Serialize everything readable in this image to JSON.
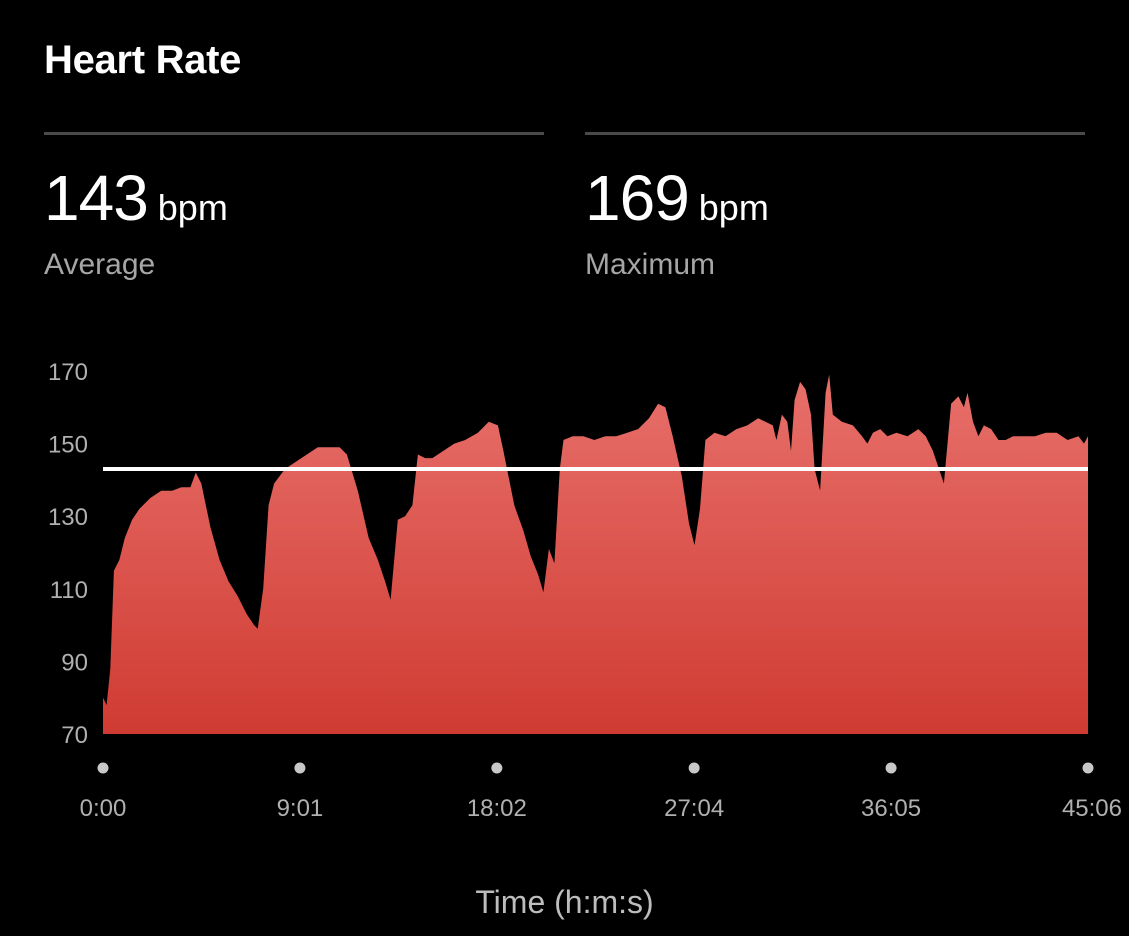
{
  "title": "Heart Rate",
  "stats": {
    "average": {
      "value": "143",
      "unit": "bpm",
      "label": "Average"
    },
    "maximum": {
      "value": "169",
      "unit": "bpm",
      "label": "Maximum"
    }
  },
  "colors": {
    "background": "#000000",
    "area_top": "#e8706b",
    "area_bottom": "#cf3b32",
    "average_line": "#ffffff",
    "divider": "#4a4a4a",
    "muted_text": "#a6a6a6"
  },
  "chart_data": {
    "type": "area",
    "title": "",
    "xlabel": "Time (h:m:s)",
    "ylabel": "",
    "ylim": [
      70,
      170
    ],
    "xlim_seconds": [
      0,
      2706
    ],
    "y_ticks": [
      70,
      90,
      110,
      130,
      150,
      170
    ],
    "x_ticks": [
      {
        "seconds": 0,
        "label": "0:00"
      },
      {
        "seconds": 541,
        "label": "9:01"
      },
      {
        "seconds": 1082,
        "label": "18:02"
      },
      {
        "seconds": 1624,
        "label": "27:04"
      },
      {
        "seconds": 2165,
        "label": "36:05"
      },
      {
        "seconds": 2706,
        "label": "45:06"
      }
    ],
    "average_line": 143,
    "grid": false,
    "legend": "none",
    "series": [
      {
        "values": [
          [
            0,
            80
          ],
          [
            10,
            78
          ],
          [
            20,
            88
          ],
          [
            30,
            115
          ],
          [
            45,
            118
          ],
          [
            60,
            124
          ],
          [
            80,
            129
          ],
          [
            100,
            132
          ],
          [
            130,
            135
          ],
          [
            160,
            137
          ],
          [
            190,
            137
          ],
          [
            215,
            138
          ],
          [
            240,
            138
          ],
          [
            255,
            142
          ],
          [
            270,
            139
          ],
          [
            295,
            127
          ],
          [
            320,
            118
          ],
          [
            345,
            112
          ],
          [
            370,
            108
          ],
          [
            395,
            103
          ],
          [
            415,
            100
          ],
          [
            425,
            99
          ],
          [
            440,
            110
          ],
          [
            455,
            133
          ],
          [
            470,
            139
          ],
          [
            500,
            143
          ],
          [
            530,
            145
          ],
          [
            560,
            147
          ],
          [
            590,
            149
          ],
          [
            620,
            149
          ],
          [
            650,
            149
          ],
          [
            670,
            147
          ],
          [
            700,
            137
          ],
          [
            730,
            124
          ],
          [
            755,
            118
          ],
          [
            775,
            112
          ],
          [
            790,
            107
          ],
          [
            810,
            129
          ],
          [
            830,
            130
          ],
          [
            850,
            133
          ],
          [
            865,
            147
          ],
          [
            885,
            146
          ],
          [
            905,
            146
          ],
          [
            935,
            148
          ],
          [
            965,
            150
          ],
          [
            995,
            151
          ],
          [
            1030,
            153
          ],
          [
            1060,
            156
          ],
          [
            1085,
            155
          ],
          [
            1100,
            148
          ],
          [
            1130,
            133
          ],
          [
            1155,
            126
          ],
          [
            1175,
            119
          ],
          [
            1195,
            114
          ],
          [
            1210,
            109
          ],
          [
            1225,
            121
          ],
          [
            1240,
            117
          ],
          [
            1255,
            143
          ],
          [
            1265,
            151
          ],
          [
            1290,
            152
          ],
          [
            1320,
            152
          ],
          [
            1350,
            151
          ],
          [
            1380,
            152
          ],
          [
            1410,
            152
          ],
          [
            1440,
            153
          ],
          [
            1470,
            154
          ],
          [
            1500,
            157
          ],
          [
            1525,
            161
          ],
          [
            1545,
            160
          ],
          [
            1565,
            152
          ],
          [
            1590,
            141
          ],
          [
            1610,
            128
          ],
          [
            1625,
            122
          ],
          [
            1640,
            132
          ],
          [
            1655,
            151
          ],
          [
            1680,
            153
          ],
          [
            1710,
            152
          ],
          [
            1740,
            154
          ],
          [
            1770,
            155
          ],
          [
            1800,
            157
          ],
          [
            1820,
            156
          ],
          [
            1840,
            155
          ],
          [
            1850,
            151
          ],
          [
            1865,
            158
          ],
          [
            1880,
            156
          ],
          [
            1890,
            148
          ],
          [
            1900,
            162
          ],
          [
            1915,
            167
          ],
          [
            1930,
            165
          ],
          [
            1945,
            158
          ],
          [
            1955,
            143
          ],
          [
            1970,
            137
          ],
          [
            1985,
            164
          ],
          [
            1995,
            169
          ],
          [
            2005,
            158
          ],
          [
            2030,
            156
          ],
          [
            2060,
            155
          ],
          [
            2085,
            152
          ],
          [
            2100,
            150
          ],
          [
            2115,
            153
          ],
          [
            2135,
            154
          ],
          [
            2155,
            152
          ],
          [
            2180,
            153
          ],
          [
            2210,
            152
          ],
          [
            2240,
            154
          ],
          [
            2260,
            152
          ],
          [
            2280,
            148
          ],
          [
            2300,
            142
          ],
          [
            2310,
            139
          ],
          [
            2330,
            161
          ],
          [
            2350,
            163
          ],
          [
            2365,
            160
          ],
          [
            2375,
            164
          ],
          [
            2390,
            156
          ],
          [
            2405,
            152
          ],
          [
            2420,
            155
          ],
          [
            2440,
            154
          ],
          [
            2460,
            151
          ],
          [
            2480,
            151
          ],
          [
            2500,
            152
          ],
          [
            2530,
            152
          ],
          [
            2560,
            152
          ],
          [
            2590,
            153
          ],
          [
            2620,
            153
          ],
          [
            2650,
            151
          ],
          [
            2680,
            152
          ],
          [
            2695,
            150
          ],
          [
            2706,
            152
          ]
        ]
      }
    ]
  }
}
